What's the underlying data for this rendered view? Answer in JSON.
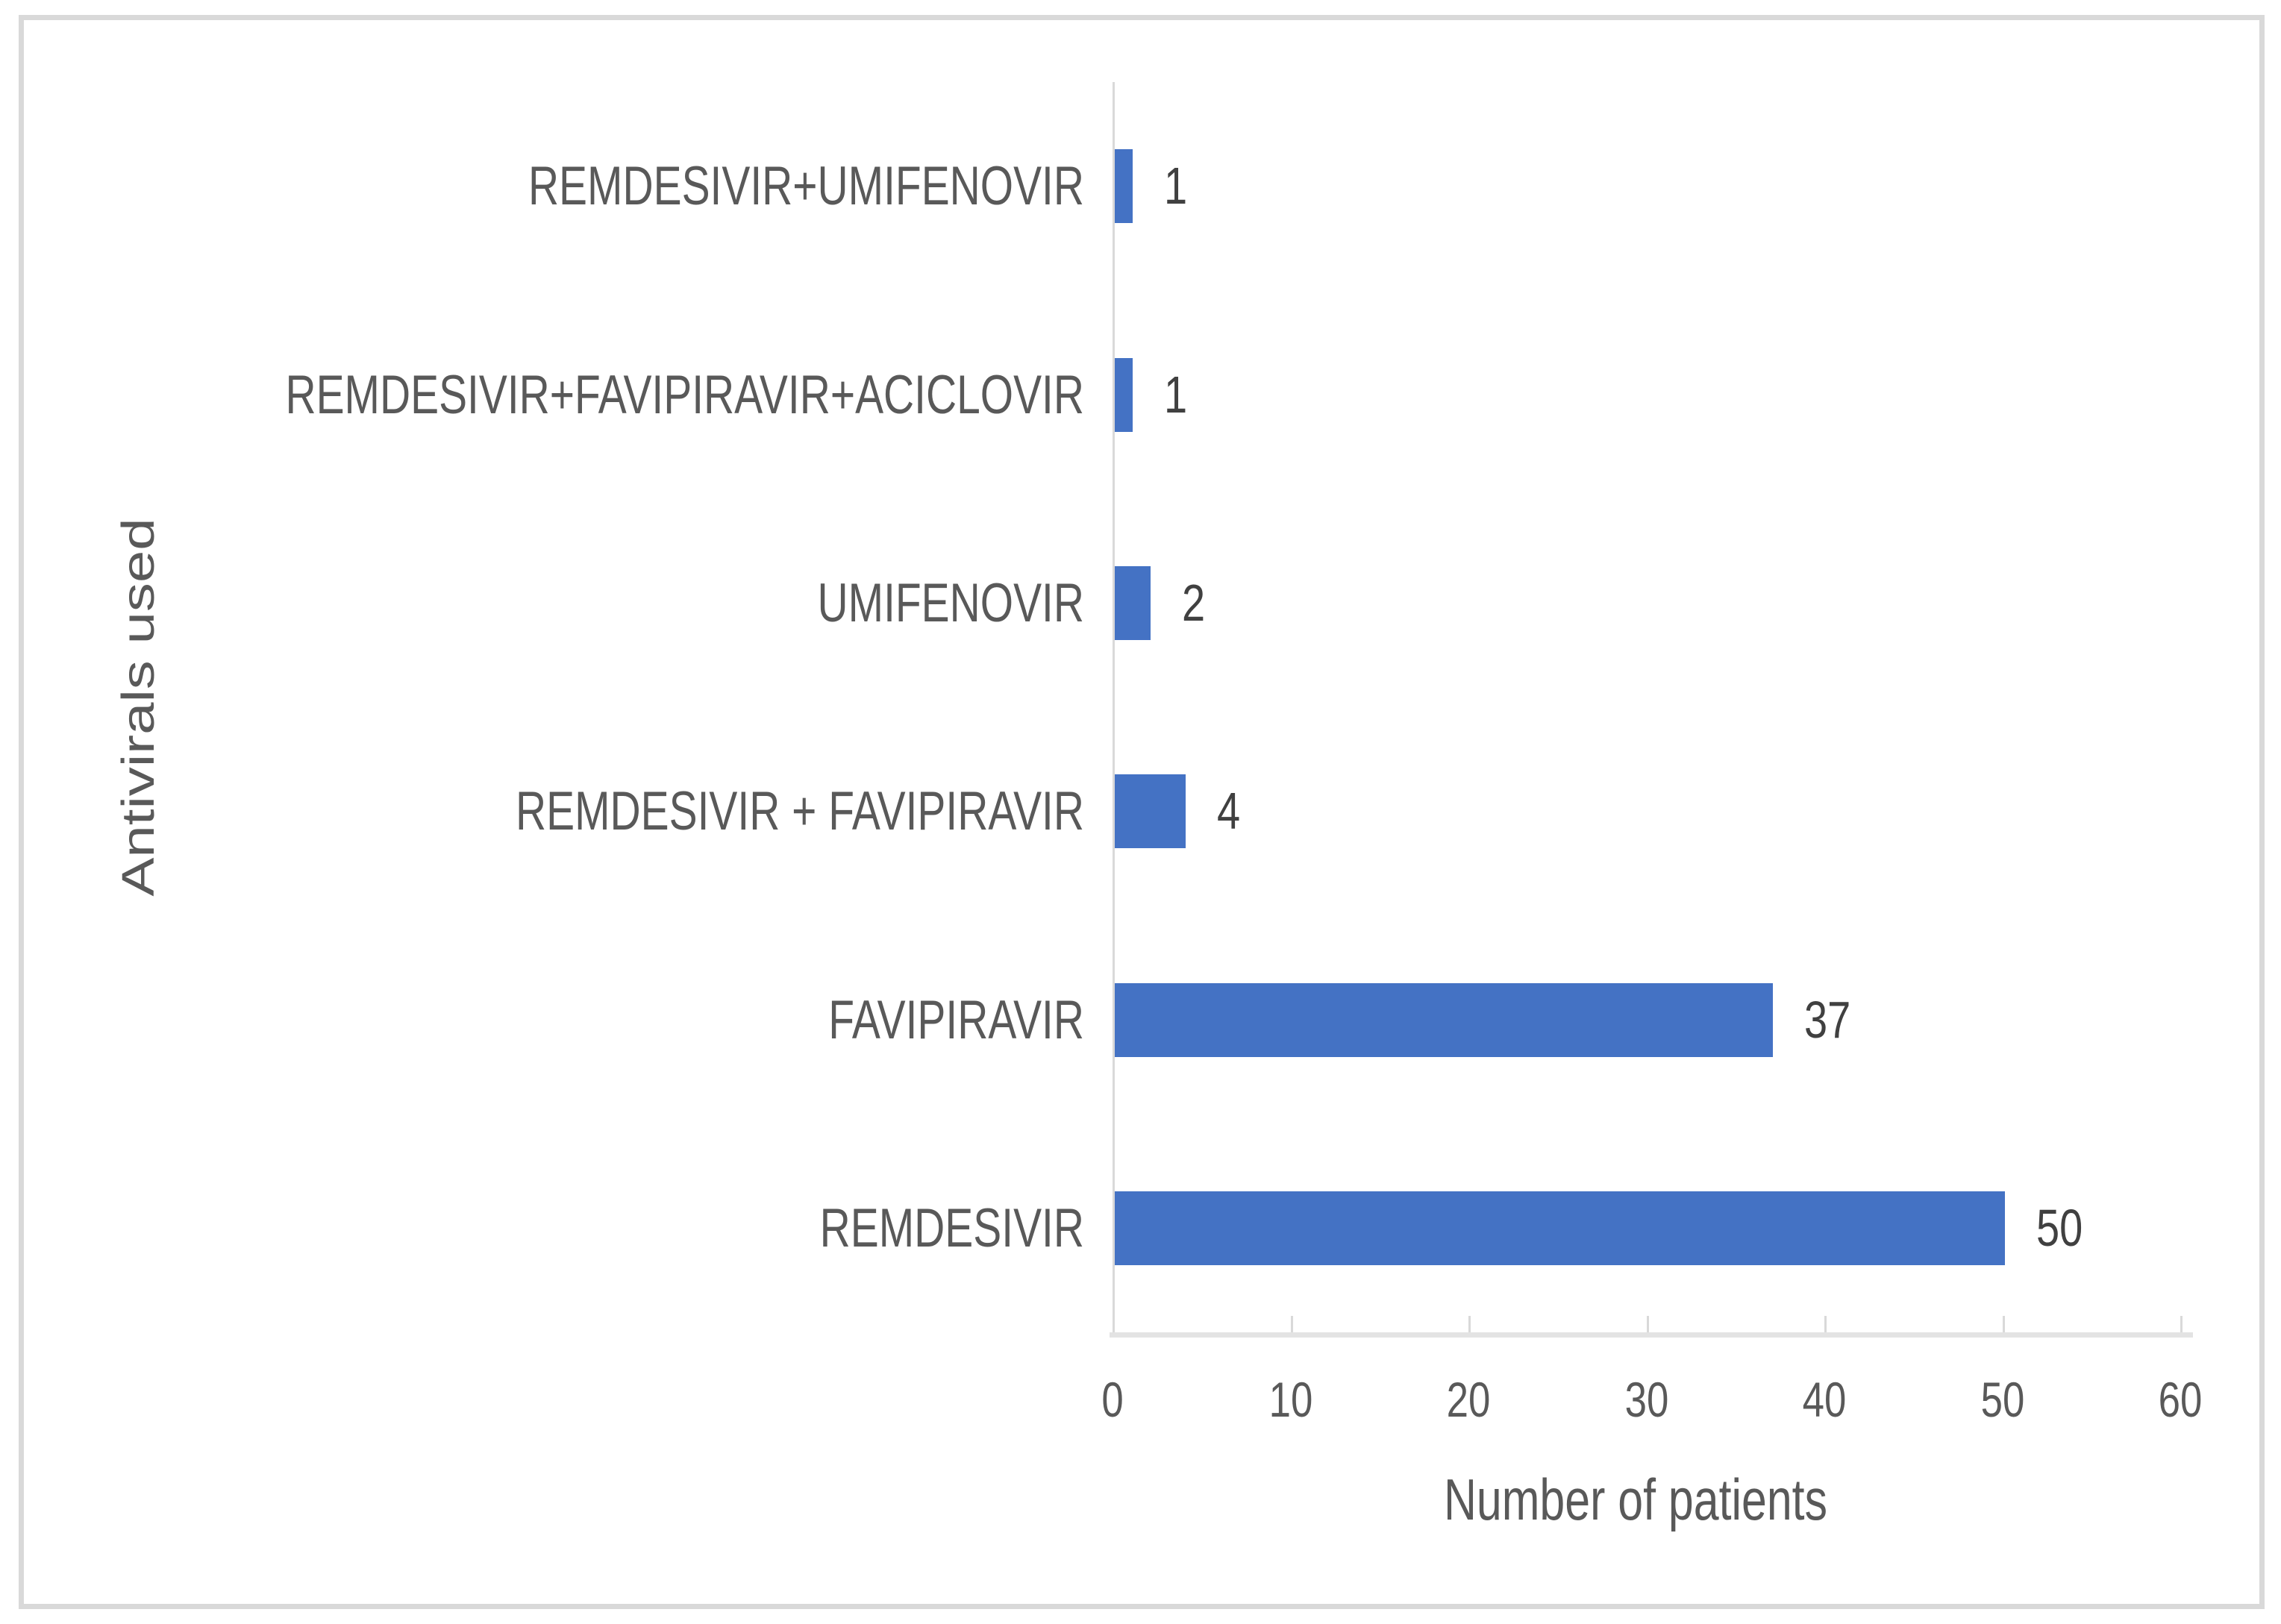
{
  "figure": {
    "frame_border_color": "#d9d9d9",
    "background_color": "#ffffff"
  },
  "chart_data": {
    "type": "bar",
    "orientation": "horizontal",
    "title": "",
    "xlabel": "Number of patients",
    "ylabel": "Antivirals used",
    "categories": [
      "REMDESIVIR+UMIFENOVIR",
      "REMDESIVIR+FAVIPIRAVIR+ACICLOVIR",
      "UMIFENOVIR",
      "REMDESIVIR + FAVIPIRAVIR",
      "FAVIPIRAVIR",
      "REMDESIVIR"
    ],
    "values": [
      1,
      1,
      2,
      4,
      37,
      50
    ],
    "data_labels": [
      "1",
      "1",
      "2",
      "4",
      "37",
      "50"
    ],
    "xlim": [
      0,
      60
    ],
    "xticks": [
      0,
      10,
      20,
      30,
      40,
      50,
      60
    ],
    "grid": false,
    "legend": false,
    "bar_color": "#4472c4",
    "axis_color": "#d9d9d9",
    "category_label_color": "#595959",
    "value_label_color": "#404040",
    "tick_label_color": "#595959",
    "axis_title_color": "#595959"
  }
}
